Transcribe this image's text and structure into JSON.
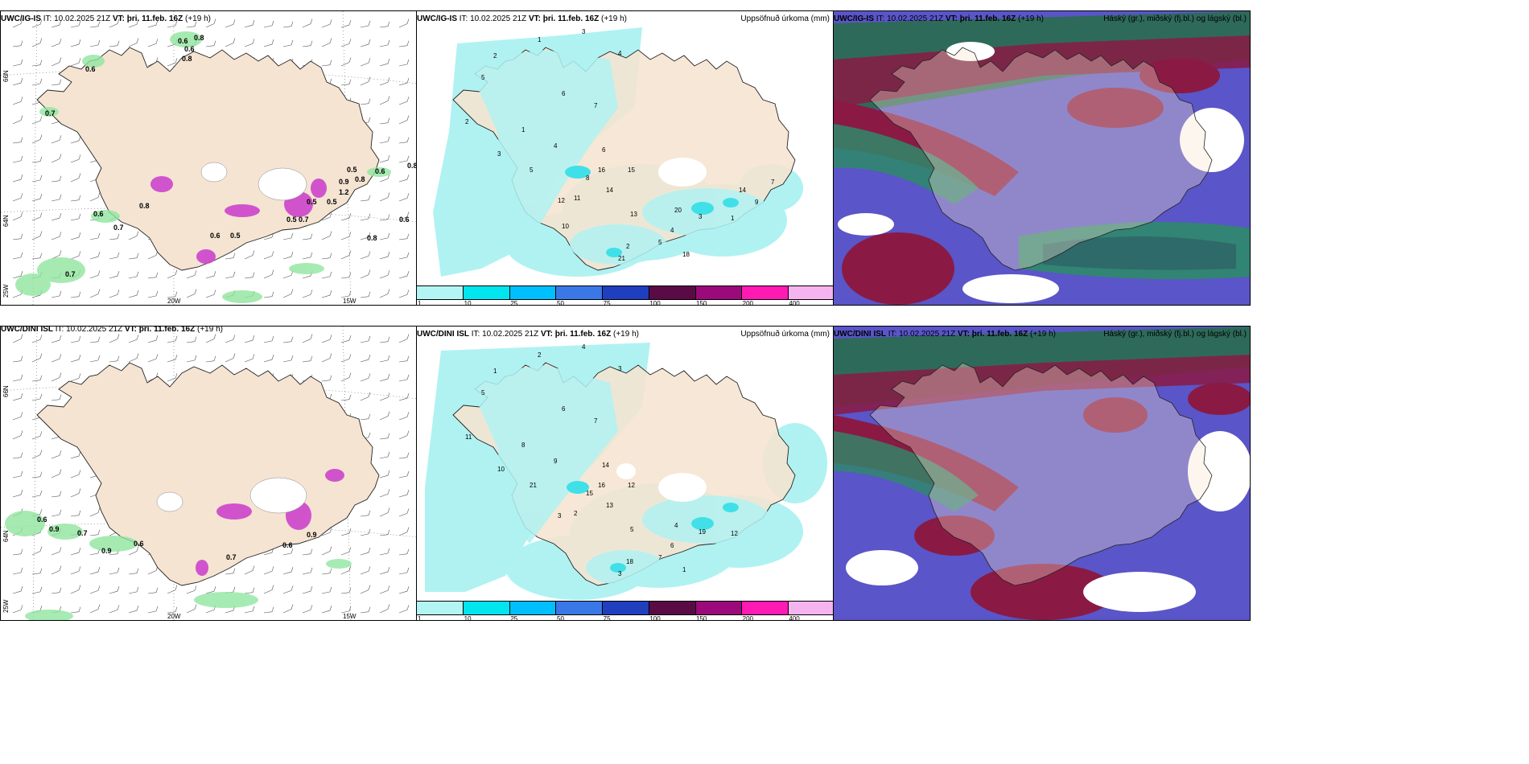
{
  "panels": {
    "top_left": {
      "prefix": "UWC/IG-IS",
      "it": " IT: 10.02.2025 21Z ",
      "vt_label": "VT:",
      "vt_value": "þri. 11.feb. 16Z",
      "lead": " (+19 h)"
    },
    "top_mid": {
      "prefix": "UWC/IG-IS",
      "it": " IT: 10.02.2025 21Z ",
      "vt_label": "VT:",
      "vt_value": "þri. 11.feb. 16Z",
      "lead": " (+19 h)",
      "right": "Uppsöfnuð úrkoma (mm)"
    },
    "top_right": {
      "prefix": "UWC/IG-IS",
      "it": " IT: 10.02.2025 21Z ",
      "vt_label": "VT:",
      "vt_value": "þri. 11.feb. 16Z",
      "lead": " (+19 h)",
      "right": "Háský (gr.), miðský (fj.bl.) og lágský (bl.)"
    },
    "bot_left": {
      "prefix": "UWC/DINI ISL",
      "it": " IT: 10.02.2025 21Z ",
      "vt_label": "VT:",
      "vt_value": "þri. 11.feb. 16Z",
      "lead": " (+19 h)"
    },
    "bot_mid": {
      "prefix": "UWC/DINI ISL",
      "it": " IT: 10.02.2025 21Z ",
      "vt_label": "VT:",
      "vt_value": "þri. 11.feb. 16Z",
      "lead": " (+19 h)",
      "right": "Uppsöfnuð úrkoma (mm)"
    },
    "bot_right": {
      "prefix": "UWC/DINI ISL",
      "it": " IT: 10.02.2025 21Z ",
      "vt_label": "VT:",
      "vt_value": "þri. 11.feb. 16Z",
      "lead": " (+19 h)",
      "right": "Háský (gr.), miðský (fj.bl.) og lágský (bl.)"
    }
  },
  "grid_labels": {
    "lat_66": "66N",
    "lat_64": "64N",
    "lon_25": "25W",
    "lon_20": "20W",
    "lon_15": "15W"
  },
  "colorbar": {
    "ticks": [
      "1",
      "10",
      "25",
      "50",
      "75",
      "100",
      "150",
      "200",
      "400"
    ],
    "colors": [
      "#b3f5f5",
      "#00e5ee",
      "#00bfff",
      "#3a78e8",
      "#1f3fbf",
      "#5a0a45",
      "#9a0a7a",
      "#ff1ab3",
      "#f5b3f0"
    ]
  },
  "colors": {
    "land": "#f5e4d2",
    "precip_light": "#b0f2f2",
    "precip_mid": "#40e0e8",
    "ice_green": "#90e6a0",
    "ice_magenta": "#cc44cc",
    "cloud_high": "#2e8a6a",
    "cloud_mid": "#5a55c8",
    "cloud_low": "#8a1a44"
  },
  "precip_labels_top": [
    "3",
    "1",
    "4",
    "2",
    "5",
    "6",
    "7",
    "2",
    "1",
    "4",
    "3",
    "6",
    "5",
    "8",
    "16",
    "15",
    "14",
    "11",
    "12",
    "20",
    "13",
    "4",
    "5",
    "2",
    "3",
    "1",
    "21",
    "18",
    "14",
    "7",
    "9",
    "10"
  ],
  "precip_labels_bot": [
    "4",
    "2",
    "3",
    "1",
    "5",
    "6",
    "7",
    "11",
    "8",
    "9",
    "10",
    "14",
    "21",
    "15",
    "16",
    "12",
    "13",
    "2",
    "3",
    "4",
    "5",
    "6",
    "7",
    "18",
    "19",
    "12",
    "3",
    "1"
  ],
  "ice_labels_top": [
    "0.6",
    "0.8",
    "0.6",
    "0.8",
    "0.6",
    "0.7",
    "0.5",
    "0.9",
    "1.2",
    "0.5",
    "0.8",
    "0.6",
    "0.8",
    "0.6",
    "0.7",
    "0.8",
    "0.5",
    "0.5",
    "0.7",
    "0.6",
    "0.5",
    "0.6",
    "0.8",
    "0.7"
  ],
  "ice_labels_bot": [
    "0.6",
    "0.9",
    "0.7",
    "0.9",
    "0.6",
    "0.7",
    "0.6",
    "0.9"
  ]
}
